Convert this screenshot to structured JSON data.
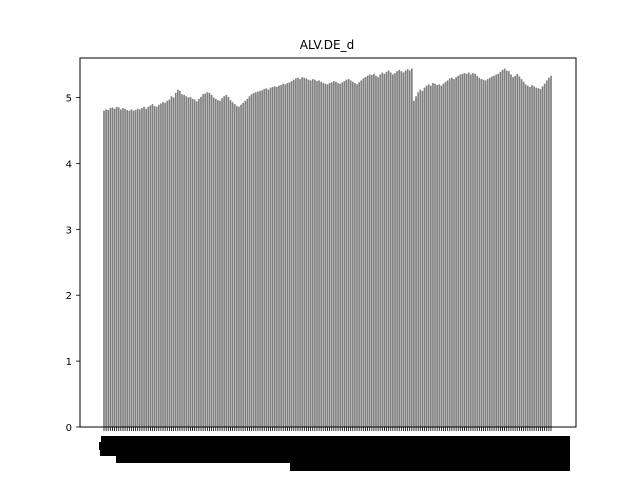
{
  "chart_data": {
    "type": "bar",
    "title": "ALV.DE_d",
    "xlabel": "",
    "ylabel": "",
    "ylim": [
      0,
      5.6
    ],
    "yticks": [
      0,
      1,
      2,
      3,
      4,
      5
    ],
    "ytick_labels": [
      "0",
      "1",
      "2",
      "3",
      "4",
      "5"
    ],
    "grid": false,
    "bar_color": "#808080",
    "values": [
      4.8,
      4.82,
      4.81,
      4.84,
      4.85,
      4.83,
      4.86,
      4.85,
      4.82,
      4.84,
      4.83,
      4.81,
      4.8,
      4.82,
      4.8,
      4.81,
      4.83,
      4.82,
      4.84,
      4.86,
      4.83,
      4.86,
      4.88,
      4.9,
      4.87,
      4.86,
      4.89,
      4.91,
      4.93,
      4.92,
      4.95,
      4.97,
      5.02,
      5.0,
      5.07,
      5.12,
      5.1,
      5.05,
      5.04,
      5.02,
      5.0,
      5.01,
      4.98,
      4.97,
      4.94,
      4.98,
      5.01,
      5.05,
      5.06,
      5.08,
      5.07,
      5.04,
      5.0,
      4.98,
      4.96,
      4.95,
      4.99,
      5.02,
      5.04,
      5.01,
      4.96,
      4.93,
      4.9,
      4.87,
      4.86,
      4.89,
      4.92,
      4.95,
      4.98,
      5.02,
      5.05,
      5.07,
      5.08,
      5.09,
      5.1,
      5.11,
      5.13,
      5.14,
      5.12,
      5.15,
      5.16,
      5.17,
      5.16,
      5.18,
      5.19,
      5.21,
      5.2,
      5.22,
      5.23,
      5.25,
      5.27,
      5.29,
      5.3,
      5.28,
      5.31,
      5.3,
      5.29,
      5.27,
      5.26,
      5.28,
      5.27,
      5.25,
      5.26,
      5.24,
      5.22,
      5.21,
      5.2,
      5.22,
      5.23,
      5.25,
      5.24,
      5.22,
      5.21,
      5.23,
      5.25,
      5.27,
      5.28,
      5.26,
      5.24,
      5.22,
      5.2,
      5.23,
      5.26,
      5.29,
      5.31,
      5.33,
      5.35,
      5.34,
      5.36,
      5.33,
      5.31,
      5.35,
      5.38,
      5.36,
      5.39,
      5.41,
      5.38,
      5.35,
      5.37,
      5.4,
      5.42,
      5.4,
      5.38,
      5.41,
      5.43,
      5.41,
      5.44,
      4.95,
      5.02,
      5.08,
      5.12,
      5.1,
      5.15,
      5.18,
      5.2,
      5.18,
      5.22,
      5.21,
      5.19,
      5.2,
      5.18,
      5.21,
      5.24,
      5.26,
      5.29,
      5.3,
      5.28,
      5.31,
      5.33,
      5.35,
      5.36,
      5.37,
      5.36,
      5.38,
      5.35,
      5.37,
      5.36,
      5.33,
      5.3,
      5.28,
      5.27,
      5.26,
      5.28,
      5.3,
      5.32,
      5.33,
      5.35,
      5.36,
      5.39,
      5.42,
      5.44,
      5.41,
      5.4,
      5.35,
      5.31,
      5.33,
      5.36,
      5.32,
      5.28,
      5.24,
      5.2,
      5.18,
      5.16,
      5.19,
      5.17,
      5.15,
      5.14,
      5.13,
      5.17,
      5.21,
      5.26,
      5.3,
      5.33
    ]
  }
}
